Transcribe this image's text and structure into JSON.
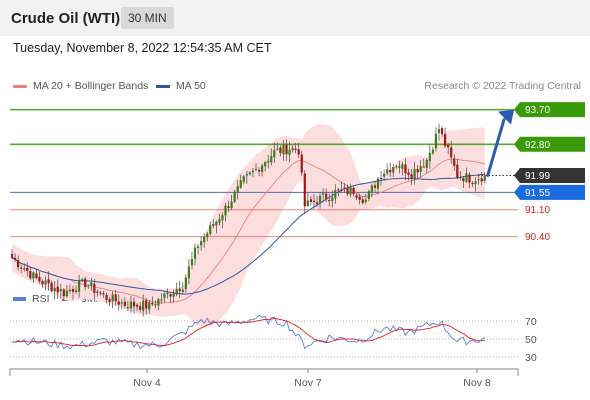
{
  "header": {
    "title": "Crude Oil (WTI)",
    "interval": "30 MIN"
  },
  "timestamp": "Tuesday, November 8, 2022 12:54:35 AM CET",
  "legend": {
    "ma20_bb": "MA 20 + Bollinger Bands",
    "ma50": "MA 50"
  },
  "copyright": "Research © 2022 Trading Central",
  "rsi_legend": {
    "rsi": "RSI",
    "ma9": "9MA"
  },
  "colors": {
    "resistance": "#3a9a0a",
    "support": "#e02020",
    "current": "#333333",
    "ma50": "#2d59a8",
    "ma20": "#f08080",
    "bollinger": "#fddede",
    "arrow": "#2a5bb0"
  },
  "chart_data": [
    {
      "type": "candlestick",
      "title": "Crude Oil (WTI)",
      "x_ticks": [
        "Nov 4",
        "Nov 7",
        "Nov 8"
      ],
      "ylim": [
        89.2,
        94.4
      ],
      "price_levels": [
        {
          "value": 93.7,
          "label": "93.70",
          "kind": "resistance"
        },
        {
          "value": 92.8,
          "label": "92.80",
          "kind": "resistance"
        },
        {
          "value": 91.99,
          "label": "91.99",
          "kind": "current"
        },
        {
          "value": 91.55,
          "label": "91.55",
          "kind": "pivot"
        },
        {
          "value": 91.1,
          "label": "91.10",
          "kind": "support"
        },
        {
          "value": 90.4,
          "label": "90.40",
          "kind": "support"
        }
      ],
      "ohlc_key_points": [
        {
          "i": 0,
          "close": 89.85
        },
        {
          "i": 8,
          "close": 89.3
        },
        {
          "i": 17,
          "close": 88.95
        },
        {
          "i": 24,
          "close": 89.2
        },
        {
          "i": 30,
          "close": 88.85
        },
        {
          "i": 37,
          "close": 88.65
        },
        {
          "i": 45,
          "close": 88.6
        },
        {
          "i": 50,
          "close": 88.85
        },
        {
          "i": 56,
          "close": 89.15
        },
        {
          "i": 61,
          "close": 90.2
        },
        {
          "i": 66,
          "close": 90.7
        },
        {
          "i": 71,
          "close": 91.25
        },
        {
          "i": 76,
          "close": 91.85
        },
        {
          "i": 80,
          "close": 92.15
        },
        {
          "i": 86,
          "close": 92.6
        },
        {
          "i": 91,
          "close": 92.7
        },
        {
          "i": 94,
          "close": 92.65
        },
        {
          "i": 96,
          "close": 91.2
        },
        {
          "i": 100,
          "close": 91.35
        },
        {
          "i": 106,
          "close": 91.55
        },
        {
          "i": 112,
          "close": 91.6
        },
        {
          "i": 116,
          "close": 91.35
        },
        {
          "i": 121,
          "close": 92.05
        },
        {
          "i": 126,
          "close": 92.3
        },
        {
          "i": 131,
          "close": 92.05
        },
        {
          "i": 136,
          "close": 92.4
        },
        {
          "i": 140,
          "close": 93.2
        },
        {
          "i": 142,
          "close": 92.8
        },
        {
          "i": 146,
          "close": 92.0
        },
        {
          "i": 151,
          "close": 91.9
        },
        {
          "i": 155,
          "close": 91.99
        }
      ],
      "projection_target": 93.7
    },
    {
      "type": "line",
      "title": "RSI",
      "series": [
        {
          "name": "RSI"
        },
        {
          "name": "9MA"
        }
      ],
      "y_ticks": [
        70,
        50,
        30
      ],
      "ylim": [
        20,
        80
      ],
      "rsi_key_points": [
        {
          "i": 0,
          "v": 50
        },
        {
          "i": 10,
          "v": 46
        },
        {
          "i": 20,
          "v": 42
        },
        {
          "i": 30,
          "v": 48
        },
        {
          "i": 40,
          "v": 44
        },
        {
          "i": 48,
          "v": 43
        },
        {
          "i": 56,
          "v": 56
        },
        {
          "i": 62,
          "v": 71
        },
        {
          "i": 70,
          "v": 66
        },
        {
          "i": 80,
          "v": 73
        },
        {
          "i": 90,
          "v": 68
        },
        {
          "i": 96,
          "v": 43
        },
        {
          "i": 104,
          "v": 52
        },
        {
          "i": 114,
          "v": 48
        },
        {
          "i": 122,
          "v": 62
        },
        {
          "i": 130,
          "v": 57
        },
        {
          "i": 140,
          "v": 70
        },
        {
          "i": 146,
          "v": 47
        },
        {
          "i": 155,
          "v": 50
        }
      ]
    }
  ]
}
